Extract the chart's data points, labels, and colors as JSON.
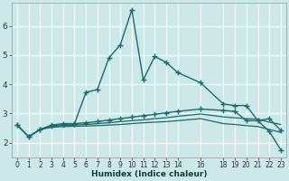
{
  "xlabel": "Humidex (Indice chaleur)",
  "bg_color": "#cce8e8",
  "grid_color": "#ffffff",
  "line_color": "#1a6b6b",
  "xlim": [
    -0.5,
    23.5
  ],
  "ylim": [
    1.5,
    6.8
  ],
  "xticks": [
    0,
    1,
    2,
    3,
    4,
    5,
    6,
    7,
    8,
    9,
    10,
    11,
    12,
    13,
    14,
    16,
    18,
    19,
    20,
    21,
    22,
    23
  ],
  "yticks": [
    2,
    3,
    4,
    5,
    6
  ],
  "lines": [
    {
      "x": [
        0,
        1,
        2,
        3,
        4,
        5,
        6,
        7,
        8,
        9,
        10,
        11,
        12,
        13,
        14,
        16,
        18,
        19,
        20,
        21,
        22,
        23
      ],
      "y": [
        2.6,
        2.2,
        2.45,
        2.6,
        2.65,
        2.65,
        3.72,
        3.82,
        4.9,
        5.35,
        6.55,
        4.15,
        4.95,
        4.75,
        4.4,
        4.05,
        3.32,
        3.27,
        3.27,
        2.75,
        2.82,
        2.42
      ],
      "style": "solid",
      "marker": true
    },
    {
      "x": [
        0,
        1,
        2,
        3,
        4,
        5,
        6,
        7,
        8,
        9,
        10,
        11,
        12,
        13,
        14,
        16,
        18,
        19,
        20,
        21,
        22,
        23
      ],
      "y": [
        2.6,
        2.2,
        2.45,
        2.58,
        2.62,
        2.65,
        2.68,
        2.72,
        2.77,
        2.82,
        2.87,
        2.92,
        2.97,
        3.02,
        3.07,
        3.15,
        3.1,
        3.07,
        2.75,
        2.75,
        2.38,
        1.75
      ],
      "style": "solid",
      "marker": true
    },
    {
      "x": [
        0,
        1,
        2,
        3,
        4,
        5,
        6,
        7,
        8,
        9,
        10,
        11,
        12,
        13,
        14,
        16,
        18,
        19,
        20,
        21,
        22,
        23
      ],
      "y": [
        2.6,
        2.2,
        2.45,
        2.55,
        2.58,
        2.6,
        2.62,
        2.65,
        2.68,
        2.72,
        2.75,
        2.78,
        2.82,
        2.85,
        2.9,
        2.98,
        2.88,
        2.85,
        2.82,
        2.8,
        2.7,
        2.62
      ],
      "style": "solid",
      "marker": false
    },
    {
      "x": [
        0,
        1,
        2,
        3,
        4,
        5,
        6,
        7,
        8,
        9,
        10,
        11,
        12,
        13,
        14,
        16,
        18,
        19,
        20,
        21,
        22,
        23
      ],
      "y": [
        2.6,
        2.2,
        2.45,
        2.52,
        2.55,
        2.56,
        2.57,
        2.58,
        2.6,
        2.62,
        2.65,
        2.68,
        2.7,
        2.72,
        2.75,
        2.82,
        2.65,
        2.62,
        2.58,
        2.55,
        2.45,
        2.35
      ],
      "style": "solid",
      "marker": false
    }
  ],
  "xtick_fontsize": 5.5,
  "ytick_fontsize": 6.5,
  "xlabel_fontsize": 6.5
}
